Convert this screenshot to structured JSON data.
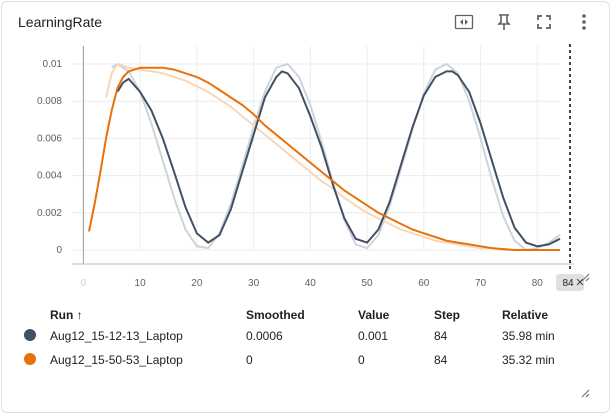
{
  "card": {
    "title": "LearningRate"
  },
  "toolbar": {
    "icons": [
      "fit-domain-icon",
      "pin-icon",
      "fullscreen-icon",
      "more-vert-icon"
    ]
  },
  "chart_data": {
    "type": "line",
    "xlim": [
      0,
      84
    ],
    "ylim": [
      0,
      0.01
    ],
    "x_ticks": [
      "0",
      "10",
      "20",
      "30",
      "40",
      "50",
      "60",
      "70",
      "80"
    ],
    "y_ticks": [
      "0",
      "0.002",
      "0.004",
      "0.006",
      "0.008",
      "0.01"
    ],
    "cursor_step": "84",
    "series": [
      {
        "name": "Aug12_15-12-13_Laptop",
        "color": "#425066",
        "raw_color": "#cfd3da",
        "x": [
          6,
          7,
          8,
          10,
          12,
          14,
          16,
          18,
          20,
          22,
          24,
          26,
          28,
          30,
          32,
          34,
          35,
          36,
          38,
          40,
          42,
          44,
          46,
          48,
          50,
          52,
          54,
          56,
          58,
          60,
          62,
          64,
          65,
          66,
          68,
          70,
          72,
          74,
          76,
          78,
          80,
          82,
          84
        ],
        "y": [
          0.0085,
          0.009,
          0.0092,
          0.0085,
          0.0075,
          0.006,
          0.0042,
          0.0023,
          0.0009,
          0.0004,
          0.0008,
          0.0022,
          0.0042,
          0.0062,
          0.0082,
          0.0093,
          0.0096,
          0.0095,
          0.0087,
          0.0072,
          0.0055,
          0.0035,
          0.0017,
          0.0006,
          0.0004,
          0.0011,
          0.0026,
          0.0046,
          0.0066,
          0.0083,
          0.0093,
          0.0096,
          0.0096,
          0.0094,
          0.0085,
          0.0068,
          0.0048,
          0.0028,
          0.0012,
          0.0004,
          0.0002,
          0.0003,
          0.0006
        ],
        "raw_x": [
          5,
          6,
          8,
          10,
          12,
          14,
          16,
          18,
          20,
          22,
          24,
          26,
          28,
          30,
          32,
          34,
          36,
          38,
          40,
          42,
          44,
          46,
          48,
          50,
          52,
          54,
          56,
          58,
          60,
          62,
          64,
          66,
          68,
          70,
          72,
          74,
          76,
          78,
          80,
          82,
          84
        ],
        "raw_y": [
          0.0098,
          0.01,
          0.0096,
          0.0085,
          0.0068,
          0.0048,
          0.0028,
          0.0011,
          0.0002,
          0.0001,
          0.0009,
          0.0025,
          0.0045,
          0.0066,
          0.0085,
          0.0098,
          0.01,
          0.0093,
          0.0078,
          0.0058,
          0.0036,
          0.0016,
          0.0003,
          0.0001,
          0.0008,
          0.0024,
          0.0044,
          0.0065,
          0.0084,
          0.0097,
          0.01,
          0.0095,
          0.008,
          0.006,
          0.0038,
          0.0018,
          0.0005,
          0.0,
          0.0001,
          0.0004,
          0.0008
        ]
      },
      {
        "name": "Aug12_15-50-53_Laptop",
        "color": "#e8710a",
        "raw_color": "#f9d6b8",
        "x": [
          1,
          2,
          3,
          4,
          5,
          6,
          7,
          8,
          9,
          10,
          11,
          12,
          14,
          16,
          18,
          20,
          22,
          24,
          26,
          28,
          30,
          32,
          34,
          36,
          38,
          40,
          42,
          44,
          46,
          48,
          50,
          52,
          54,
          56,
          58,
          60,
          62,
          64,
          66,
          68,
          70,
          72,
          74,
          76,
          78,
          80,
          82,
          84
        ],
        "y": [
          0.001,
          0.0025,
          0.0042,
          0.006,
          0.0075,
          0.0087,
          0.0093,
          0.0096,
          0.0097,
          0.0098,
          0.0098,
          0.0098,
          0.0098,
          0.0097,
          0.0095,
          0.0093,
          0.009,
          0.0086,
          0.0082,
          0.0078,
          0.0073,
          0.0067,
          0.0062,
          0.0057,
          0.0052,
          0.0047,
          0.0042,
          0.0037,
          0.0032,
          0.0028,
          0.0024,
          0.002,
          0.0017,
          0.0014,
          0.0011,
          0.0009,
          0.0007,
          0.0005,
          0.0004,
          0.0003,
          0.0002,
          0.0001,
          5e-05,
          0.0,
          0.0,
          0.0,
          0.0,
          0.0
        ],
        "raw_x": [
          4,
          5,
          6,
          7,
          8,
          10,
          12,
          14,
          16,
          18,
          20,
          22,
          24,
          26,
          28,
          30,
          32,
          34,
          36,
          38,
          40,
          42,
          44,
          46,
          48,
          50,
          52,
          54,
          56,
          58,
          60,
          62,
          64,
          66,
          68,
          70,
          72,
          74,
          76,
          78,
          80,
          82,
          84
        ],
        "raw_y": [
          0.0082,
          0.0095,
          0.01,
          0.0099,
          0.0098,
          0.0097,
          0.0096,
          0.0095,
          0.0093,
          0.0091,
          0.0088,
          0.0085,
          0.0081,
          0.0077,
          0.0072,
          0.0067,
          0.0062,
          0.0057,
          0.0052,
          0.0047,
          0.0042,
          0.0037,
          0.0033,
          0.0028,
          0.0024,
          0.002,
          0.0017,
          0.0014,
          0.0011,
          0.0009,
          0.0007,
          0.0005,
          0.0004,
          0.0003,
          0.0002,
          0.0001,
          0.0001,
          0.0,
          0.0,
          0.0,
          0.0,
          0.0,
          0.0
        ]
      }
    ]
  },
  "table": {
    "headers": {
      "run": "Run ↑",
      "smoothed": "Smoothed",
      "value": "Value",
      "step": "Step",
      "relative": "Relative"
    },
    "rows": [
      {
        "color": "#425066",
        "run": "Aug12_15-12-13_Laptop",
        "smoothed": "0.0006",
        "value": "0.001",
        "step": "84",
        "relative": "35.98 min"
      },
      {
        "color": "#e8710a",
        "run": "Aug12_15-50-53_Laptop",
        "smoothed": "0",
        "value": "0",
        "step": "84",
        "relative": "35.32 min"
      }
    ]
  }
}
